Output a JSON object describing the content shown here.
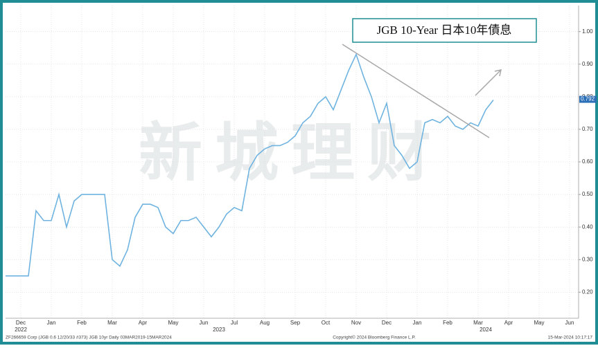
{
  "chart_data": {
    "type": "line",
    "title": "JGB 10-Year 日本10年債息",
    "watermark": "新城理财",
    "categories": [
      null,
      null,
      "Dec",
      null,
      null,
      null,
      "Jan",
      null,
      null,
      null,
      "Feb",
      null,
      null,
      null,
      "Mar",
      null,
      null,
      null,
      "Apr",
      null,
      null,
      null,
      "May",
      null,
      null,
      null,
      "Jun",
      null,
      null,
      null,
      "Jul",
      null,
      null,
      null,
      "Aug",
      null,
      null,
      null,
      "Sep",
      null,
      null,
      null,
      "Oct",
      null,
      null,
      null,
      "Nov",
      null,
      null,
      null,
      "Dec",
      null,
      null,
      null,
      "Jan",
      null,
      null,
      null,
      "Feb",
      null,
      null,
      null,
      "Mar",
      null,
      null,
      null,
      "Apr",
      null,
      null,
      null,
      "May",
      null,
      null,
      null,
      "Jun",
      null
    ],
    "years": [
      "2022",
      "2023",
      "2024"
    ],
    "series": [
      {
        "name": "JGB 10yr",
        "color": "#6fb3e0",
        "values": [
          0.25,
          0.25,
          0.25,
          0.25,
          0.45,
          0.42,
          0.42,
          0.5,
          0.4,
          0.48,
          0.5,
          0.5,
          0.5,
          0.5,
          0.3,
          0.28,
          0.33,
          0.43,
          0.47,
          0.47,
          0.46,
          0.4,
          0.38,
          0.42,
          0.42,
          0.43,
          0.4,
          0.37,
          0.4,
          0.44,
          0.46,
          0.45,
          0.58,
          0.62,
          0.64,
          0.65,
          0.65,
          0.66,
          0.68,
          0.72,
          0.74,
          0.78,
          0.8,
          0.76,
          0.82,
          0.88,
          0.93,
          0.86,
          0.8,
          0.72,
          0.78,
          0.65,
          0.62,
          0.58,
          0.6,
          0.72,
          0.73,
          0.72,
          0.74,
          0.71,
          0.7,
          0.72,
          0.71,
          0.76,
          0.79,
          null,
          null,
          null,
          null,
          null,
          null,
          null,
          null,
          null,
          null,
          null
        ]
      }
    ],
    "last_value": 0.792,
    "ylim": [
      0.12,
      1.08
    ],
    "yticks": [
      {
        "value": 0.2,
        "label": "0.20"
      },
      {
        "value": 0.3,
        "label": "0.30"
      },
      {
        "value": 0.4,
        "label": "0.40"
      },
      {
        "value": 0.5,
        "label": "0.50"
      },
      {
        "value": 0.6,
        "label": "0.60"
      },
      {
        "value": 0.7,
        "label": "0.70"
      },
      {
        "value": 0.8,
        "label": "0.80"
      },
      {
        "value": 0.9,
        "label": "0.90"
      },
      {
        "value": 1.0,
        "label": "1.00"
      }
    ],
    "grid": true,
    "footer": {
      "left": "ZF266659 Corp (JGB 0.6 12/20/33 #373) JGB 10yr Daily 03MAR2019-15MAR2024",
      "center": "Copyright© 2024 Bloomberg Finance L.P.",
      "right": "15-Mar-2024 10:17:17"
    }
  }
}
